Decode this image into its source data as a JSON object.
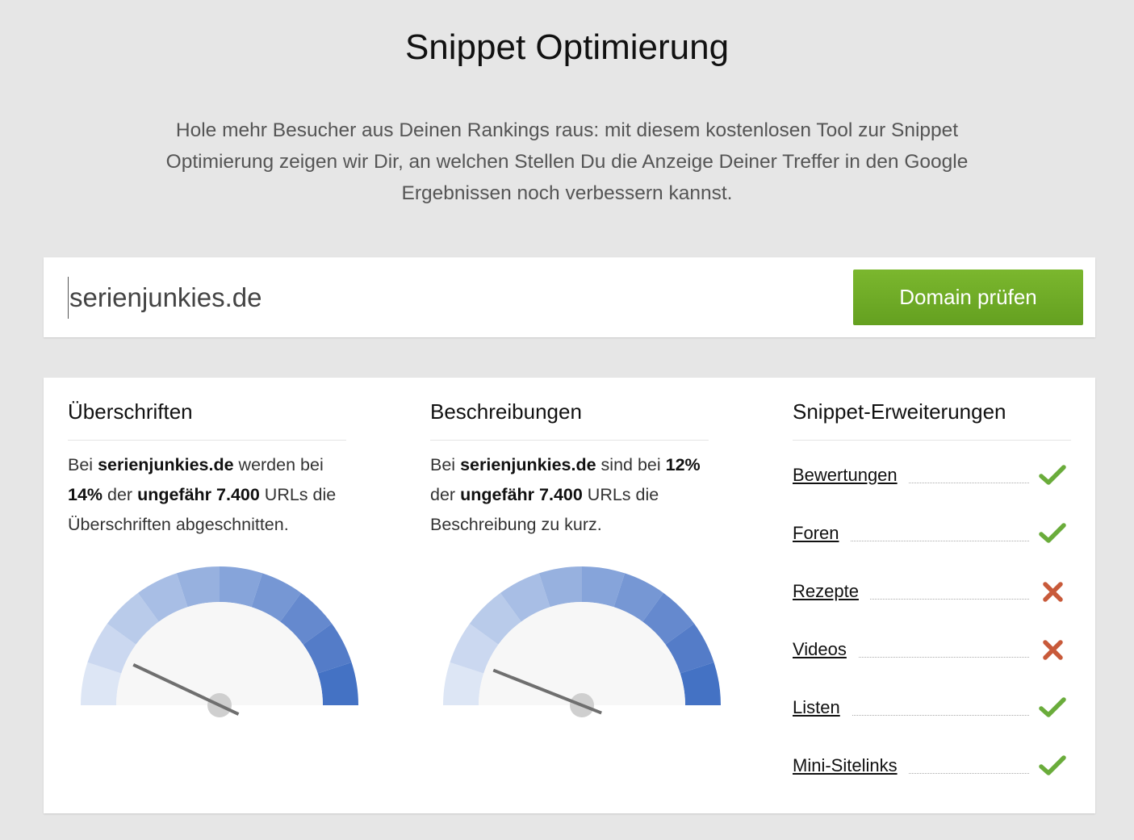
{
  "header": {
    "title": "Snippet Optimierung",
    "intro": "Hole mehr Besucher aus Deinen Rankings raus: mit diesem kostenlosen Tool zur Snippet Optimierung zeigen wir Dir, an welchen Stellen Du die Anzeige Deiner Treffer in den Google Ergebnissen noch verbessern kannst."
  },
  "search": {
    "value": "serienjunkies.de",
    "button_label": "Domain prüfen"
  },
  "headings_col": {
    "title": "Überschriften",
    "text_1": "Bei ",
    "domain": "serienjunkies.de",
    "text_2": " werden bei ",
    "percent": "14%",
    "text_3": " der ",
    "count": "ungefähr 7.400",
    "text_4": " URLs die Überschriften abgeschnitten.",
    "gauge_value": 0.14
  },
  "descriptions_col": {
    "title": "Beschreibungen",
    "text_1": "Bei ",
    "domain": "serienjunkies.de",
    "text_2": " sind bei ",
    "percent": "12%",
    "text_3": " der ",
    "count": "ungefähr 7.400",
    "text_4": " URLs die Beschreibung zu kurz.",
    "gauge_value": 0.12
  },
  "extensions_col": {
    "title": "Snippet-Erweiterungen",
    "items": [
      {
        "label": "Bewertungen",
        "status": "yes",
        "icon": "check-icon"
      },
      {
        "label": "Foren",
        "status": "yes",
        "icon": "check-icon"
      },
      {
        "label": "Rezepte",
        "status": "no",
        "icon": "cross-icon"
      },
      {
        "label": "Videos",
        "status": "no",
        "icon": "cross-icon"
      },
      {
        "label": "Listen",
        "status": "yes",
        "icon": "check-icon"
      },
      {
        "label": "Mini-Sitelinks",
        "status": "yes",
        "icon": "check-icon"
      }
    ]
  },
  "colors": {
    "check": "#6aac3b",
    "cross": "#c85a3a",
    "button": "#6aa626",
    "gauge_segments": [
      "#dde6f5",
      "#cbd8f0",
      "#b9cbea",
      "#a8bee5",
      "#97b1df",
      "#86a4da",
      "#7697d4",
      "#6589ce",
      "#547cc8",
      "#4472c4"
    ]
  }
}
